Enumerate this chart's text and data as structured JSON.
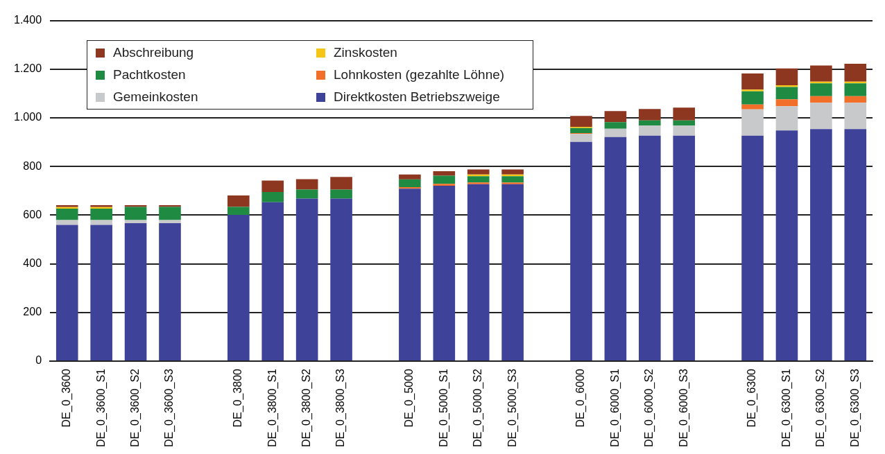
{
  "chart_data": {
    "type": "bar",
    "stacked": true,
    "grid": "y",
    "legend": "top left",
    "categories": [
      "DE_0_3600",
      "DE_0_3600_S1",
      "DE_0_3600_S2",
      "DE_0_3600_S3",
      null,
      "DE_0_3800",
      "DE_0_3800_S1",
      "DE_0_3800_S2",
      "DE_0_3800_S3",
      null,
      "DE_0_5000",
      "DE_0_5000_S1",
      "DE_0_5000_S2",
      "DE_0_5000_S3",
      null,
      "DE_0_6000",
      "DE_0_6000_S1",
      "DE_0_6000_S2",
      "DE_0_6000_S3",
      null,
      "DE_0_6300",
      "DE_0_6300_S1",
      "DE_0_6300_S2",
      "DE_0_6300_S3"
    ],
    "ylim": [
      0,
      1400
    ],
    "yticks": [
      0,
      200,
      400,
      600,
      800,
      {
        "value": 1000,
        "label": "1.000"
      },
      {
        "value": 1200,
        "label": "1.200"
      },
      {
        "value": 1400,
        "label": "1.400"
      }
    ],
    "series": [
      {
        "name": "Direktkosten Betriebszweige",
        "color": "#3f4299",
        "values": [
          560,
          560,
          567,
          567,
          null,
          601,
          653,
          668,
          668,
          null,
          709,
          721,
          727,
          727,
          null,
          901,
          921,
          927,
          927,
          null,
          927,
          948,
          954,
          954
        ]
      },
      {
        "name": "Gemeinkosten",
        "color": "#c8c9cb",
        "values": [
          20,
          20,
          13,
          13,
          null,
          0,
          0,
          0,
          0,
          null,
          0,
          0,
          0,
          0,
          null,
          33,
          34,
          41,
          41,
          null,
          108,
          100,
          108,
          108
        ]
      },
      {
        "name": "Lohnkosten (gezahlte Löhne)",
        "color": "#f26f2a",
        "values": [
          0,
          0,
          0,
          0,
          null,
          0,
          0,
          0,
          0,
          null,
          6,
          8,
          7,
          7,
          null,
          3,
          0,
          0,
          0,
          null,
          20,
          28,
          27,
          27
        ]
      },
      {
        "name": "Pachtkosten",
        "color": "#1f8a42",
        "values": [
          47,
          47,
          54,
          54,
          null,
          33,
          42,
          37,
          37,
          null,
          32,
          33,
          26,
          26,
          null,
          21,
          27,
          21,
          21,
          null,
          54,
          51,
          53,
          53
        ]
      },
      {
        "name": "Zinskosten",
        "color": "#f5c518",
        "values": [
          6,
          6,
          0,
          0,
          null,
          0,
          0,
          0,
          0,
          null,
          0,
          0,
          7,
          7,
          null,
          5,
          0,
          0,
          0,
          null,
          7,
          7,
          7,
          7
        ]
      },
      {
        "name": "Abschreibung",
        "color": "#8e3720",
        "values": [
          8,
          8,
          7,
          7,
          null,
          47,
          47,
          43,
          52,
          null,
          20,
          19,
          21,
          21,
          null,
          45,
          46,
          47,
          53,
          null,
          66,
          69,
          66,
          73
        ]
      }
    ]
  }
}
